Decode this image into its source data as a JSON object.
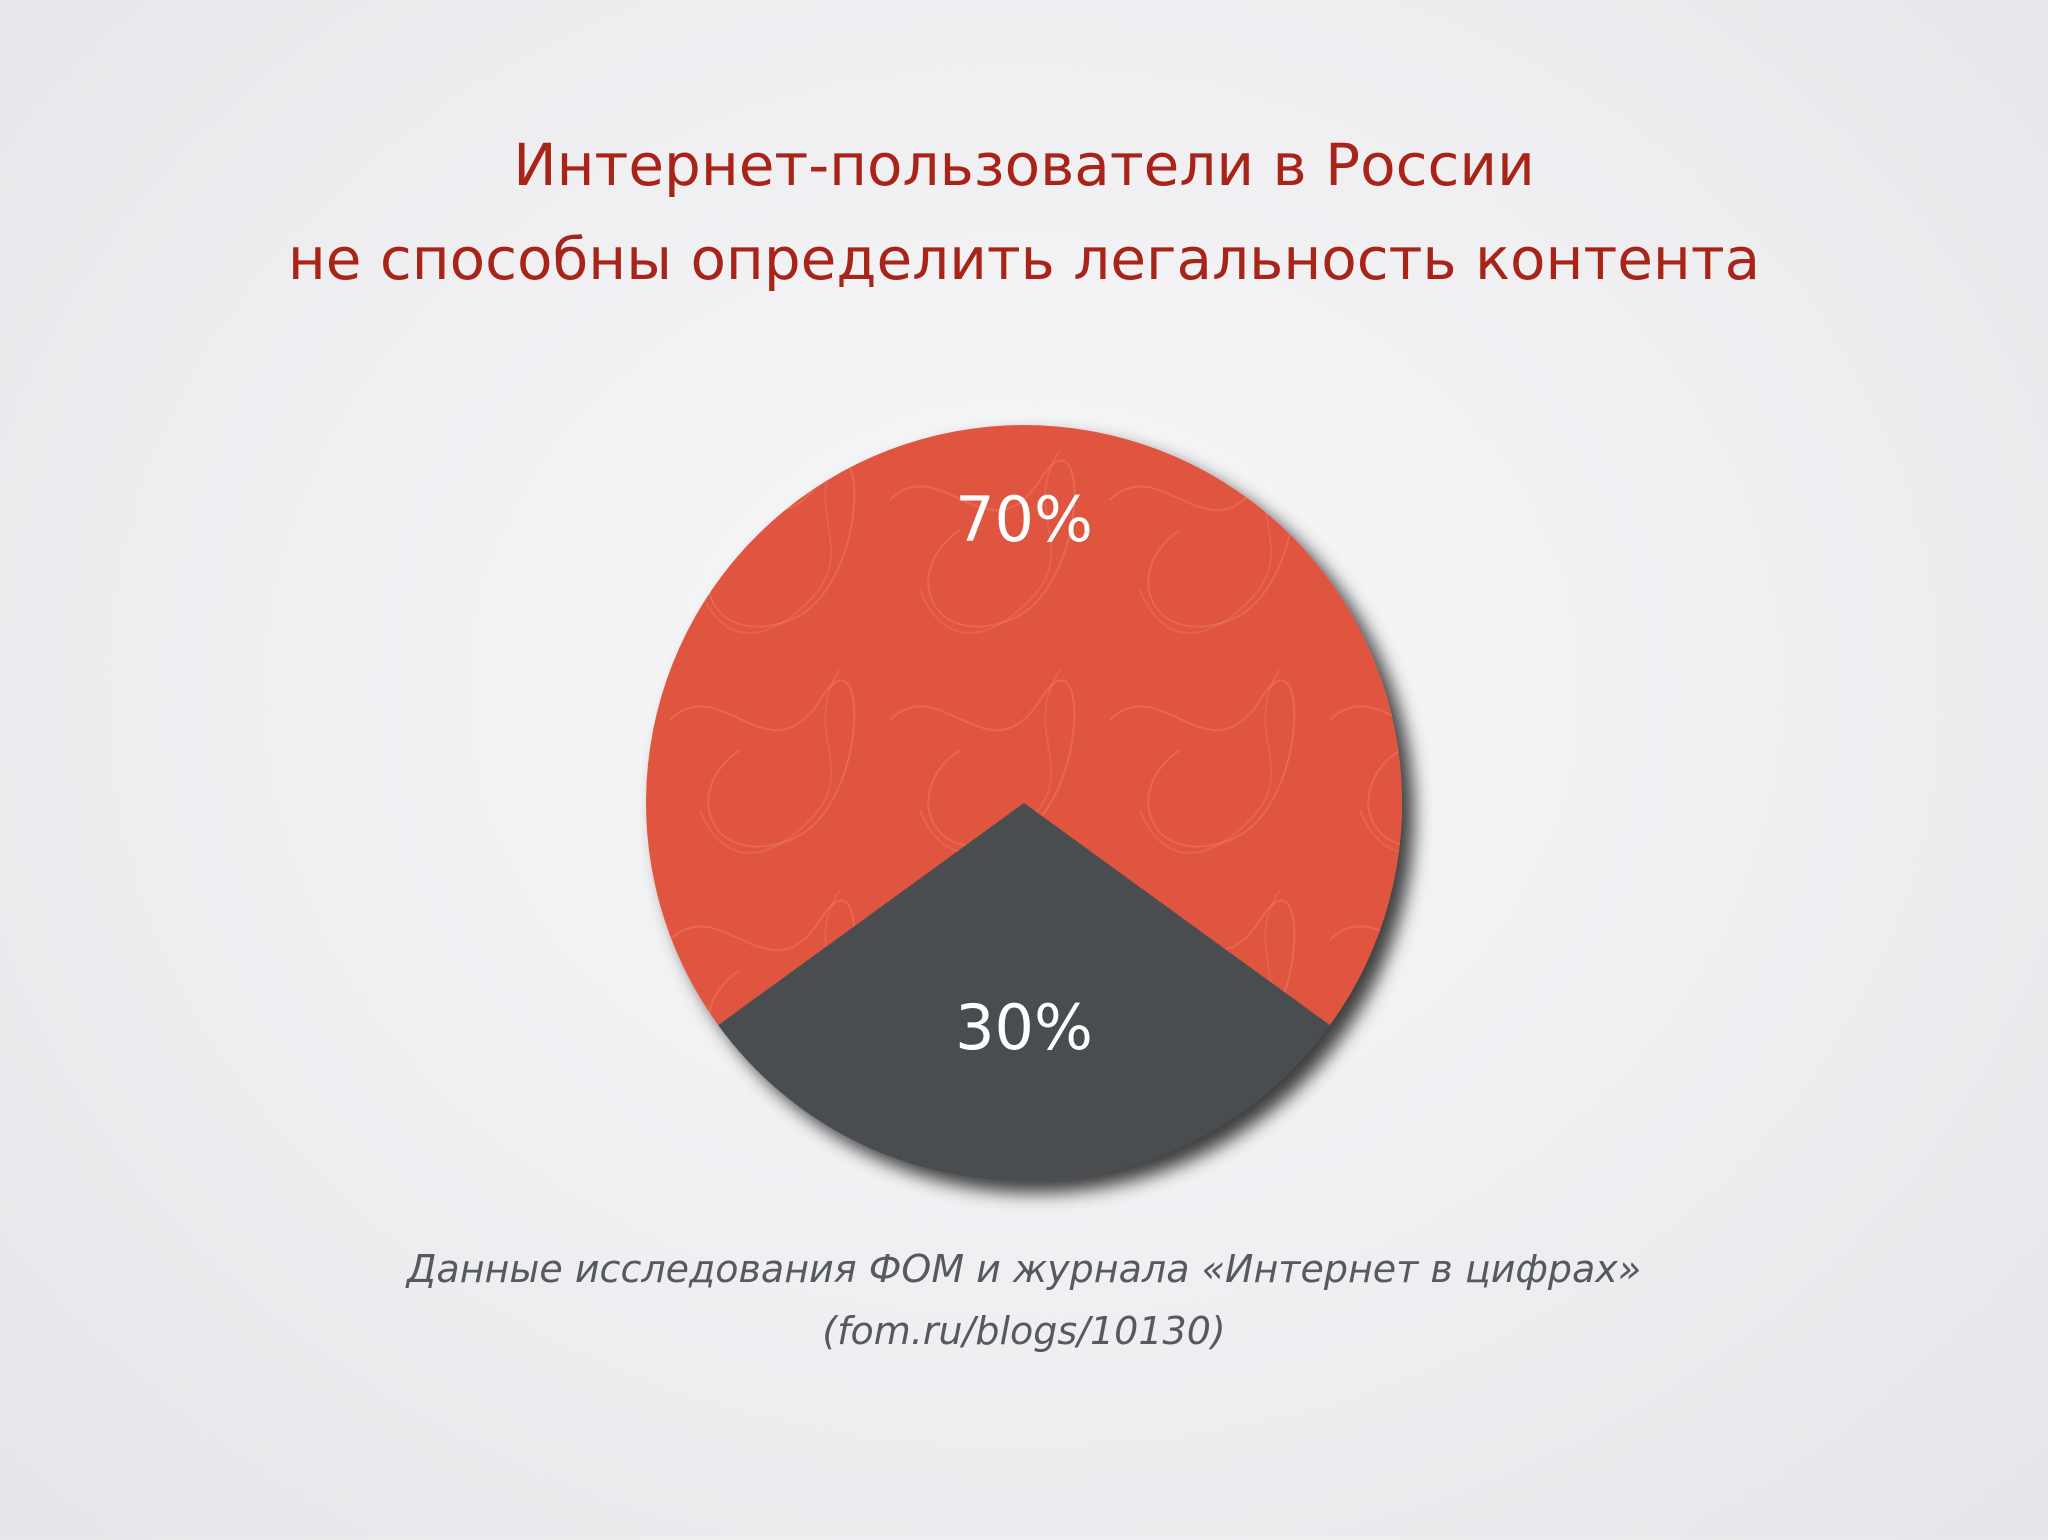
{
  "title": {
    "line1": "Интернет-пользователи в России",
    "line2": "не способны определить легальность контента"
  },
  "caption": {
    "line1": "Данные исследования ФОМ и журнала «Интернет в цифрах»",
    "line2": "(fom.ru/blogs/10130)"
  },
  "chart_data": {
    "type": "pie",
    "slices": [
      {
        "label": "70%",
        "value": 70,
        "color": "#e05440"
      },
      {
        "label": "30%",
        "value": 30,
        "color": "#4a4e50"
      }
    ]
  }
}
